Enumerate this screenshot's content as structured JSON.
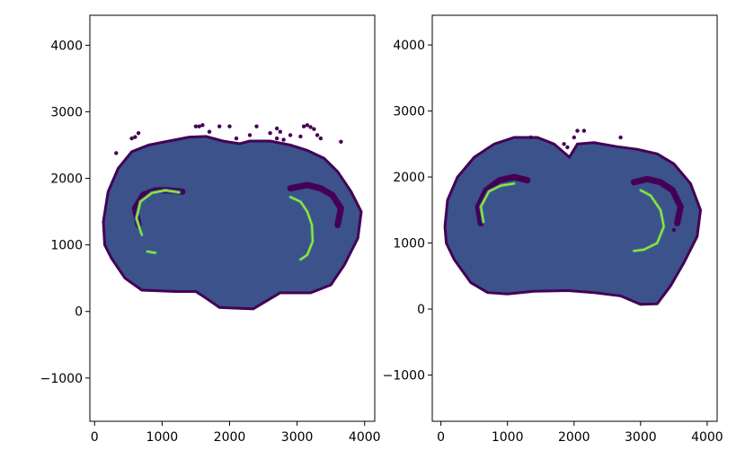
{
  "chart_data": [
    {
      "type": "scatter",
      "title": "",
      "xlabel": "",
      "ylabel": "",
      "xlim": [
        -70,
        4150
      ],
      "ylim": [
        -1650,
        4450
      ],
      "xticks": [
        0,
        1000,
        2000,
        3000,
        4000
      ],
      "yticks": [
        -1000,
        0,
        1000,
        2000,
        3000,
        4000
      ],
      "xtick_labels": [
        "0",
        "1000",
        "2000",
        "3000",
        "4000"
      ],
      "ytick_labels": [
        "−1000",
        "0",
        "1000",
        "2000",
        "3000",
        "4000"
      ],
      "grid": false,
      "colormap": "viridis",
      "colors": {
        "background": "#3b528b",
        "low": "#440154",
        "mid": "#21908c",
        "high": "#b5de2b"
      },
      "outline": [
        [
          130,
          1350
        ],
        [
          200,
          1800
        ],
        [
          350,
          2150
        ],
        [
          550,
          2400
        ],
        [
          800,
          2500
        ],
        [
          1100,
          2560
        ],
        [
          1400,
          2620
        ],
        [
          1650,
          2630
        ],
        [
          1900,
          2560
        ],
        [
          2150,
          2520
        ],
        [
          2300,
          2560
        ],
        [
          2600,
          2560
        ],
        [
          2900,
          2500
        ],
        [
          3150,
          2420
        ],
        [
          3400,
          2300
        ],
        [
          3600,
          2100
        ],
        [
          3800,
          1800
        ],
        [
          3950,
          1500
        ],
        [
          3900,
          1100
        ],
        [
          3700,
          700
        ],
        [
          3500,
          400
        ],
        [
          3200,
          280
        ],
        [
          2750,
          280
        ],
        [
          2500,
          130
        ],
        [
          2350,
          40
        ],
        [
          1850,
          60
        ],
        [
          1650,
          200
        ],
        [
          1500,
          300
        ],
        [
          1200,
          300
        ],
        [
          700,
          320
        ],
        [
          450,
          500
        ],
        [
          250,
          800
        ],
        [
          150,
          1000
        ]
      ],
      "inner_curves": [
        [
          [
            650,
            1300
          ],
          [
            600,
            1550
          ],
          [
            720,
            1750
          ],
          [
            900,
            1820
          ],
          [
            1100,
            1820
          ],
          [
            1300,
            1800
          ]
        ],
        [
          [
            3600,
            1300
          ],
          [
            3650,
            1550
          ],
          [
            3520,
            1750
          ],
          [
            3350,
            1850
          ],
          [
            3150,
            1900
          ],
          [
            2900,
            1850
          ]
        ]
      ],
      "bright_curves": [
        [
          [
            700,
            1150
          ],
          [
            620,
            1400
          ],
          [
            680,
            1650
          ],
          [
            850,
            1780
          ],
          [
            1050,
            1820
          ],
          [
            1250,
            1790
          ]
        ],
        [
          [
            900,
            880
          ],
          [
            780,
            900
          ]
        ],
        [
          [
            2900,
            1720
          ],
          [
            3050,
            1650
          ],
          [
            3150,
            1500
          ],
          [
            3220,
            1300
          ],
          [
            3230,
            1050
          ],
          [
            3150,
            850
          ],
          [
            3050,
            780
          ]
        ]
      ],
      "scatter_points": [
        [
          320,
          2380
        ],
        [
          550,
          2600
        ],
        [
          600,
          2620
        ],
        [
          650,
          2680
        ],
        [
          1500,
          2780
        ],
        [
          1550,
          2780
        ],
        [
          1600,
          2800
        ],
        [
          1700,
          2700
        ],
        [
          1850,
          2780
        ],
        [
          2000,
          2780
        ],
        [
          2100,
          2600
        ],
        [
          2300,
          2650
        ],
        [
          2400,
          2780
        ],
        [
          2600,
          2680
        ],
        [
          2700,
          2750
        ],
        [
          2750,
          2700
        ],
        [
          2900,
          2650
        ],
        [
          3050,
          2630
        ],
        [
          3100,
          2780
        ],
        [
          3150,
          2800
        ],
        [
          3200,
          2770
        ],
        [
          3250,
          2740
        ],
        [
          3300,
          2650
        ],
        [
          3350,
          2600
        ],
        [
          3650,
          2550
        ],
        [
          2800,
          2580
        ],
        [
          2700,
          2600
        ]
      ]
    },
    {
      "type": "scatter",
      "title": "",
      "xlabel": "",
      "ylabel": "",
      "xlim": [
        -130,
        4150
      ],
      "ylim": [
        -1700,
        4450
      ],
      "xticks": [
        0,
        1000,
        2000,
        3000,
        4000
      ],
      "yticks": [
        -1000,
        0,
        1000,
        2000,
        3000,
        4000
      ],
      "xtick_labels": [
        "0",
        "1000",
        "2000",
        "3000",
        "4000"
      ],
      "ytick_labels": [
        "−1000",
        "0",
        "1000",
        "2000",
        "3000",
        "4000"
      ],
      "grid": false,
      "colormap": "viridis",
      "colors": {
        "background": "#3b528b",
        "low": "#440154",
        "mid": "#21908c",
        "high": "#b5de2b"
      },
      "outline": [
        [
          60,
          1250
        ],
        [
          100,
          1650
        ],
        [
          250,
          2000
        ],
        [
          500,
          2300
        ],
        [
          800,
          2500
        ],
        [
          1100,
          2600
        ],
        [
          1450,
          2600
        ],
        [
          1700,
          2500
        ],
        [
          1930,
          2300
        ],
        [
          2050,
          2500
        ],
        [
          2300,
          2520
        ],
        [
          2650,
          2460
        ],
        [
          2950,
          2420
        ],
        [
          3250,
          2350
        ],
        [
          3500,
          2200
        ],
        [
          3750,
          1900
        ],
        [
          3900,
          1500
        ],
        [
          3850,
          1100
        ],
        [
          3650,
          700
        ],
        [
          3450,
          350
        ],
        [
          3250,
          80
        ],
        [
          3000,
          70
        ],
        [
          2700,
          200
        ],
        [
          2300,
          250
        ],
        [
          1900,
          280
        ],
        [
          1400,
          270
        ],
        [
          1000,
          230
        ],
        [
          700,
          250
        ],
        [
          450,
          400
        ],
        [
          200,
          750
        ],
        [
          80,
          1000
        ]
      ],
      "inner_curves": [
        [
          [
            600,
            1300
          ],
          [
            560,
            1550
          ],
          [
            680,
            1800
          ],
          [
            880,
            1950
          ],
          [
            1100,
            2000
          ],
          [
            1300,
            1950
          ]
        ],
        [
          [
            3550,
            1300
          ],
          [
            3600,
            1550
          ],
          [
            3480,
            1800
          ],
          [
            3300,
            1920
          ],
          [
            3100,
            1970
          ],
          [
            2900,
            1920
          ]
        ]
      ],
      "bright_curves": [
        [
          [
            640,
            1320
          ],
          [
            600,
            1550
          ],
          [
            720,
            1780
          ],
          [
            900,
            1870
          ],
          [
            1100,
            1900
          ]
        ],
        [
          [
            3000,
            1800
          ],
          [
            3150,
            1720
          ],
          [
            3300,
            1500
          ],
          [
            3350,
            1250
          ],
          [
            3250,
            1000
          ],
          [
            3050,
            900
          ],
          [
            2900,
            880
          ]
        ]
      ],
      "scatter_points": [
        [
          2050,
          2700
        ],
        [
          2150,
          2700
        ],
        [
          1850,
          2500
        ],
        [
          1900,
          2450
        ],
        [
          2000,
          2600
        ],
        [
          2700,
          2600
        ],
        [
          3500,
          1200
        ],
        [
          1350,
          2600
        ]
      ]
    }
  ]
}
